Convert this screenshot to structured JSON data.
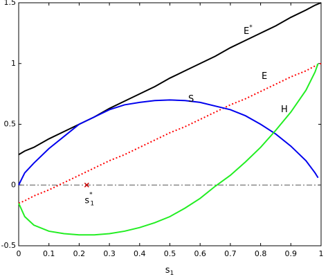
{
  "chart_data": {
    "type": "line",
    "x": [
      0,
      0.02,
      0.05,
      0.1,
      0.15,
      0.2,
      0.25,
      0.3,
      0.35,
      0.4,
      0.45,
      0.5,
      0.55,
      0.6,
      0.65,
      0.7,
      0.75,
      0.8,
      0.85,
      0.9,
      0.95,
      0.98,
      0.99,
      1
    ],
    "series": [
      {
        "name": "E",
        "name_sup": "*",
        "color": "#000000",
        "style": "solid",
        "values": [
          0.25,
          0.28,
          0.31,
          0.38,
          0.44,
          0.5,
          0.56,
          0.63,
          0.69,
          0.75,
          0.81,
          0.88,
          0.94,
          1.0,
          1.06,
          1.13,
          1.19,
          1.25,
          1.31,
          1.38,
          1.44,
          1.48,
          1.49,
          1.5
        ]
      },
      {
        "name": "E",
        "color": "#ff0000",
        "style": "dotted",
        "values": [
          -0.15,
          -0.13,
          -0.09,
          -0.04,
          0.02,
          0.08,
          0.14,
          0.2,
          0.25,
          0.31,
          0.37,
          0.43,
          0.48,
          0.54,
          0.6,
          0.66,
          0.71,
          0.77,
          0.83,
          0.89,
          0.94,
          0.98,
          0.99,
          1.0
        ]
      },
      {
        "name": "S",
        "color": "#0000ee",
        "style": "solid",
        "values": [
          0,
          0.1,
          0.18,
          0.3,
          0.4,
          0.5,
          0.56,
          0.62,
          0.66,
          0.68,
          0.695,
          0.7,
          0.695,
          0.68,
          0.65,
          0.62,
          0.57,
          0.5,
          0.42,
          0.32,
          0.2,
          0.1,
          0.06,
          null
        ]
      },
      {
        "name": "H",
        "color": "#22ee22",
        "style": "solid",
        "values": [
          -0.15,
          -0.26,
          -0.33,
          -0.38,
          -0.4,
          -0.41,
          -0.41,
          -0.4,
          -0.38,
          -0.35,
          -0.31,
          -0.26,
          -0.19,
          -0.11,
          -0.01,
          0.08,
          0.19,
          0.31,
          0.45,
          0.6,
          0.78,
          0.93,
          1.0,
          null
        ]
      }
    ],
    "hline": 0,
    "marker": {
      "x": 0.225,
      "y": 0,
      "color": "#cc0000",
      "label": "s",
      "label_sub": "1",
      "label_sup": "*"
    },
    "xlabel": "s",
    "xlabel_sub": "1",
    "xlim": [
      0,
      1
    ],
    "xticks": [
      0,
      0.1,
      0.2,
      0.3,
      0.4,
      0.5,
      0.6,
      0.7,
      0.8,
      0.9,
      1
    ],
    "ylim": [
      -0.5,
      1.5
    ],
    "yticks": [
      -0.5,
      0,
      0.5,
      1,
      1.5
    ]
  }
}
